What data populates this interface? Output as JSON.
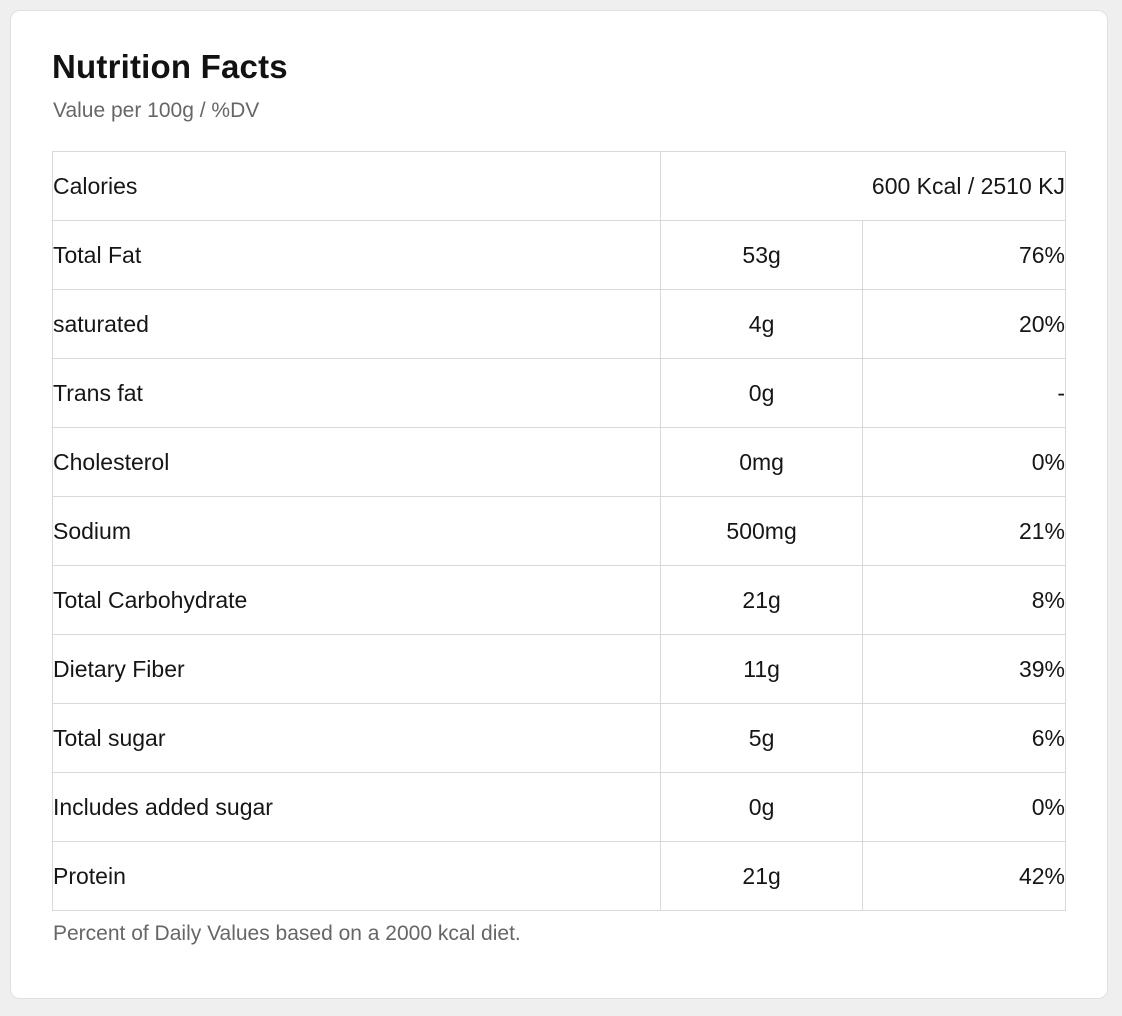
{
  "header": {
    "title": "Nutrition Facts",
    "subtitle": "Value per 100g / %DV"
  },
  "table": {
    "calories_row": {
      "label": "Calories",
      "value": "600 Kcal / 2510 KJ"
    },
    "rows": [
      {
        "label": "Total Fat",
        "amount": "53g",
        "dv": "76%"
      },
      {
        "label": "saturated",
        "amount": "4g",
        "dv": "20%"
      },
      {
        "label": "Trans fat",
        "amount": "0g",
        "dv": "-"
      },
      {
        "label": "Cholesterol",
        "amount": "0mg",
        "dv": "0%"
      },
      {
        "label": "Sodium",
        "amount": "500mg",
        "dv": "21%"
      },
      {
        "label": "Total Carbohydrate",
        "amount": "21g",
        "dv": "8%"
      },
      {
        "label": "Dietary Fiber",
        "amount": "11g",
        "dv": "39%"
      },
      {
        "label": "Total sugar",
        "amount": "5g",
        "dv": "6%"
      },
      {
        "label": "Includes added sugar",
        "amount": "0g",
        "dv": "0%"
      },
      {
        "label": "Protein",
        "amount": "21g",
        "dv": "42%"
      }
    ]
  },
  "footer": {
    "note": "Percent of Daily Values based on a 2000 kcal diet."
  },
  "colors": {
    "page_background": "#efefef",
    "card_background": "#ffffff",
    "card_border": "#e0e0e0",
    "table_border": "#d9d9d9",
    "text_primary": "#161616",
    "text_secondary": "#666666"
  }
}
